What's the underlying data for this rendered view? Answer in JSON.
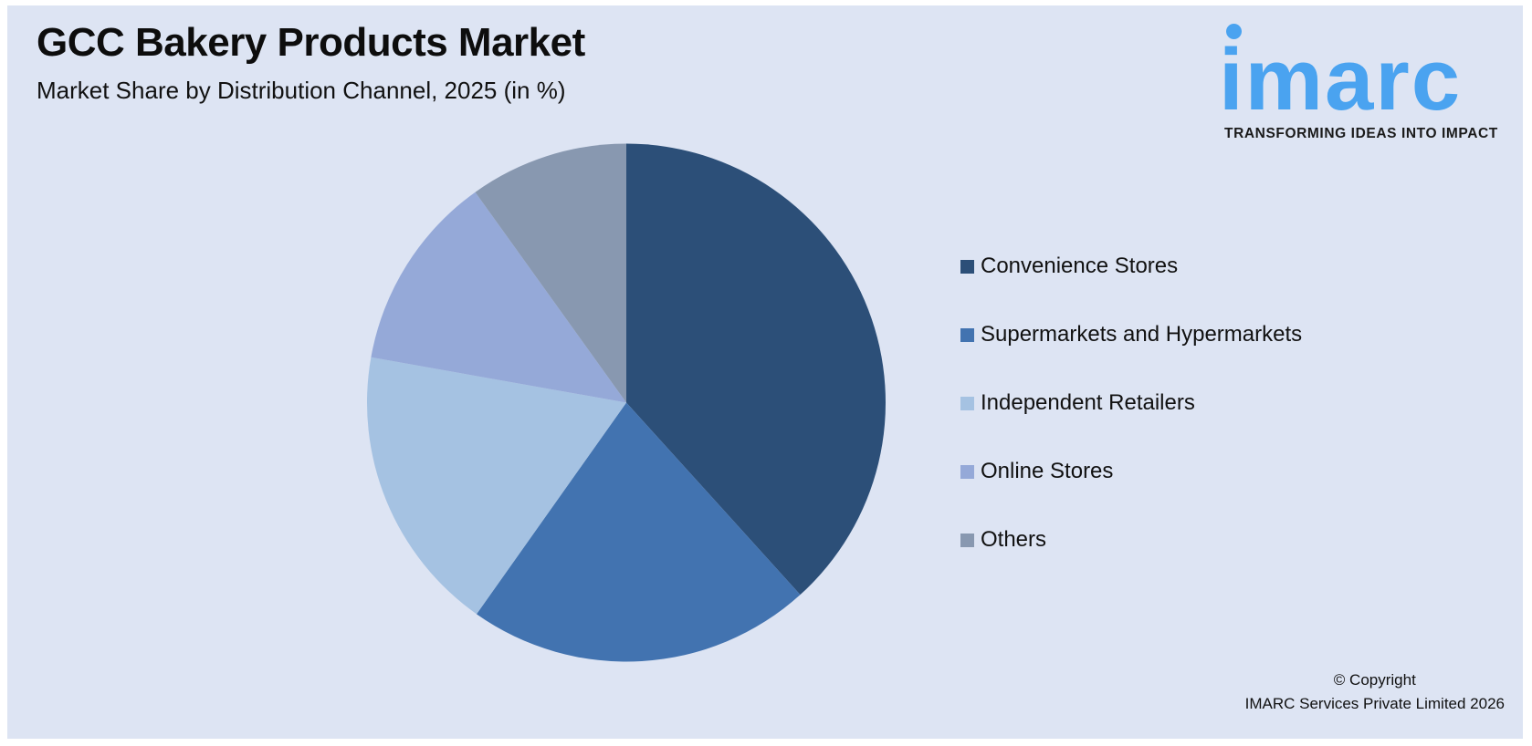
{
  "header": {
    "title": "GCC Bakery Products Market",
    "subtitle": "Market Share by Distribution Channel, 2025 (in %)"
  },
  "logo": {
    "word": "imarc",
    "tagline": "TRANSFORMING IDEAS INTO IMPACT",
    "color": "#4aa3f0"
  },
  "footer": {
    "line1": "© Copyright",
    "line2": "IMARC Services Private Limited 2026"
  },
  "chart_data": {
    "type": "pie",
    "title": "GCC Bakery Products Market",
    "subtitle": "Market Share by Distribution Channel, 2025 (in %)",
    "categories": [
      "Convenience Stores",
      "Supermarkets and Hypermarkets",
      "Independent Retailers",
      "Online Stores",
      "Others"
    ],
    "values": [
      38.3,
      21.5,
      18.0,
      12.3,
      9.9
    ],
    "colors": [
      "#2c4f78",
      "#4273b0",
      "#a5c2e2",
      "#95a9d8",
      "#8898b0"
    ],
    "start_angle": "12 o'clock, clockwise",
    "data_labels": false,
    "legend_position": "right"
  }
}
